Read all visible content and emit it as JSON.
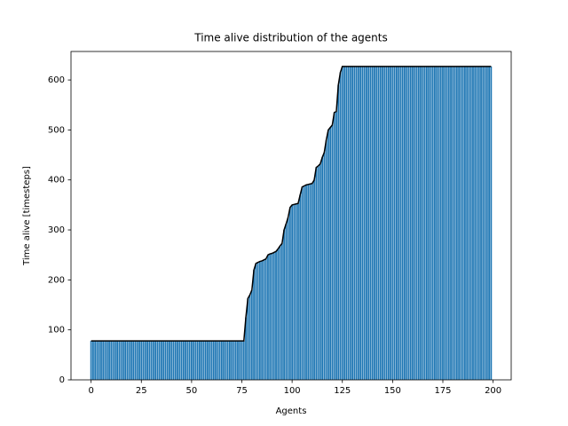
{
  "chart_data": {
    "type": "bar",
    "title": "Time alive distribution of the agents",
    "xlabel": "Agents",
    "ylabel": "Time alive [timesteps]",
    "color": "#1f77b4",
    "line_color": "#000000",
    "xlim": [
      -10,
      209
    ],
    "ylim": [
      0,
      657
    ],
    "xticks": [
      0,
      25,
      50,
      75,
      100,
      125,
      150,
      175,
      200
    ],
    "yticks": [
      0,
      100,
      200,
      300,
      400,
      500,
      600
    ],
    "x": [
      0,
      1,
      2,
      3,
      4,
      5,
      6,
      7,
      8,
      9,
      10,
      11,
      12,
      13,
      14,
      15,
      16,
      17,
      18,
      19,
      20,
      21,
      22,
      23,
      24,
      25,
      26,
      27,
      28,
      29,
      30,
      31,
      32,
      33,
      34,
      35,
      36,
      37,
      38,
      39,
      40,
      41,
      42,
      43,
      44,
      45,
      46,
      47,
      48,
      49,
      50,
      51,
      52,
      53,
      54,
      55,
      56,
      57,
      58,
      59,
      60,
      61,
      62,
      63,
      64,
      65,
      66,
      67,
      68,
      69,
      70,
      71,
      72,
      73,
      74,
      75,
      76,
      77,
      78,
      79,
      80,
      81,
      82,
      83,
      84,
      85,
      86,
      87,
      88,
      89,
      90,
      91,
      92,
      93,
      94,
      95,
      96,
      97,
      98,
      99,
      100,
      101,
      102,
      103,
      104,
      105,
      106,
      107,
      108,
      109,
      110,
      111,
      112,
      113,
      114,
      115,
      116,
      117,
      118,
      119,
      120,
      121,
      122,
      123,
      124,
      125,
      126,
      127,
      128,
      129,
      130,
      131,
      132,
      133,
      134,
      135,
      136,
      137,
      138,
      139,
      140,
      141,
      142,
      143,
      144,
      145,
      146,
      147,
      148,
      149,
      150,
      151,
      152,
      153,
      154,
      155,
      156,
      157,
      158,
      159,
      160,
      161,
      162,
      163,
      164,
      165,
      166,
      167,
      168,
      169,
      170,
      171,
      172,
      173,
      174,
      175,
      176,
      177,
      178,
      179,
      180,
      181,
      182,
      183,
      184,
      185,
      186,
      187,
      188,
      189,
      190,
      191,
      192,
      193,
      194,
      195,
      196,
      197,
      198,
      199
    ],
    "values": [
      78,
      78,
      78,
      78,
      78,
      78,
      78,
      78,
      78,
      78,
      78,
      78,
      78,
      78,
      78,
      78,
      78,
      78,
      78,
      78,
      78,
      78,
      78,
      78,
      78,
      78,
      78,
      78,
      78,
      78,
      78,
      78,
      78,
      78,
      78,
      78,
      78,
      78,
      78,
      78,
      78,
      78,
      78,
      78,
      78,
      78,
      78,
      78,
      78,
      78,
      78,
      78,
      78,
      78,
      78,
      78,
      78,
      78,
      78,
      78,
      78,
      78,
      78,
      78,
      78,
      78,
      78,
      78,
      78,
      78,
      78,
      78,
      78,
      78,
      78,
      78,
      78,
      125,
      163,
      170,
      180,
      220,
      233,
      235,
      237,
      238,
      240,
      242,
      250,
      252,
      253,
      255,
      257,
      262,
      268,
      273,
      300,
      312,
      325,
      345,
      350,
      351,
      352,
      353,
      370,
      386,
      388,
      390,
      391,
      392,
      393,
      400,
      425,
      428,
      432,
      445,
      455,
      480,
      500,
      505,
      510,
      535,
      537,
      590,
      615,
      627,
      627,
      627,
      627,
      627,
      627,
      627,
      627,
      627,
      627,
      627,
      627,
      627,
      627,
      627,
      627,
      627,
      627,
      627,
      627,
      627,
      627,
      627,
      627,
      627,
      627,
      627,
      627,
      627,
      627,
      627,
      627,
      627,
      627,
      627,
      627,
      627,
      627,
      627,
      627,
      627,
      627,
      627,
      627,
      627,
      627,
      627,
      627,
      627,
      627,
      627,
      627,
      627,
      627,
      627,
      627,
      627,
      627,
      627,
      627,
      627,
      627,
      627,
      627,
      627,
      627,
      627,
      627,
      627,
      627,
      627,
      627,
      627,
      627,
      627
    ]
  }
}
